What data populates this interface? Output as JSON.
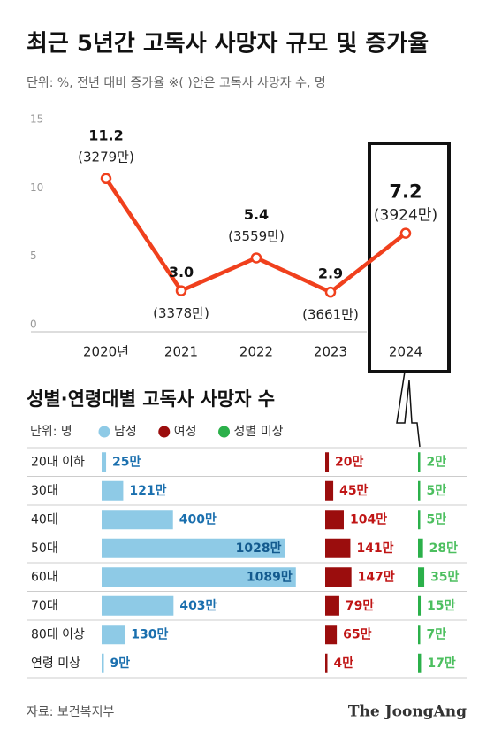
{
  "title": "최근 5년간 고독사 사망자 규모 및 증가율",
  "subtitle": "단위: %, 전년 대비 증가율   ※( )안은 고독사 사망자 수, 명",
  "chart_data": [
    {
      "type": "line",
      "categories": [
        "2020년",
        "2021",
        "2022",
        "2023",
        "2024"
      ],
      "values": [
        11.2,
        3.0,
        5.4,
        2.9,
        7.2
      ],
      "value_labels": [
        "11.2",
        "3.0",
        "5.4",
        "2.9",
        "7.2"
      ],
      "annotations": [
        "(3279만)",
        "(3378만)",
        "(3559만)",
        "(3661만)",
        "(3924만)"
      ],
      "color": "#f0401d",
      "ylim": [
        0,
        15
      ],
      "yticks": [
        0,
        5,
        10,
        15
      ],
      "grid": false
    },
    {
      "type": "hbar",
      "title": "성별·연령대별 고독사 사망자 수",
      "unit": "단위: 명",
      "categories": [
        "20대 이하",
        "30대",
        "40대",
        "50대",
        "60대",
        "70대",
        "80대 이상",
        "연령 미상"
      ],
      "xlim": [
        0,
        1100
      ],
      "series": [
        {
          "name": "남성",
          "color": "#8ecae6",
          "label_color": "#1a6fae",
          "values": [
            25,
            121,
            400,
            1028,
            1089,
            403,
            130,
            9
          ],
          "value_labels": [
            "25만",
            "121만",
            "400만",
            "1028만",
            "1089만",
            "403만",
            "130만",
            "9만"
          ]
        },
        {
          "name": "여성",
          "color": "#9b0d0d",
          "label_color": "#c01515",
          "values": [
            20,
            45,
            104,
            141,
            147,
            79,
            65,
            4
          ],
          "value_labels": [
            "20만",
            "45만",
            "104만",
            "141만",
            "147만",
            "79만",
            "65만",
            "4만"
          ]
        },
        {
          "name": "성별 미상",
          "color": "#2bb04a",
          "label_color": "#4cbf5f",
          "values": [
            2,
            5,
            5,
            28,
            35,
            15,
            7,
            17
          ],
          "value_labels": [
            "2만",
            "5만",
            "5만",
            "28만",
            "35만",
            "15만",
            "7만",
            "17만"
          ]
        }
      ]
    }
  ],
  "source": "자료: 보건복지부",
  "brand": "The JoongAng"
}
